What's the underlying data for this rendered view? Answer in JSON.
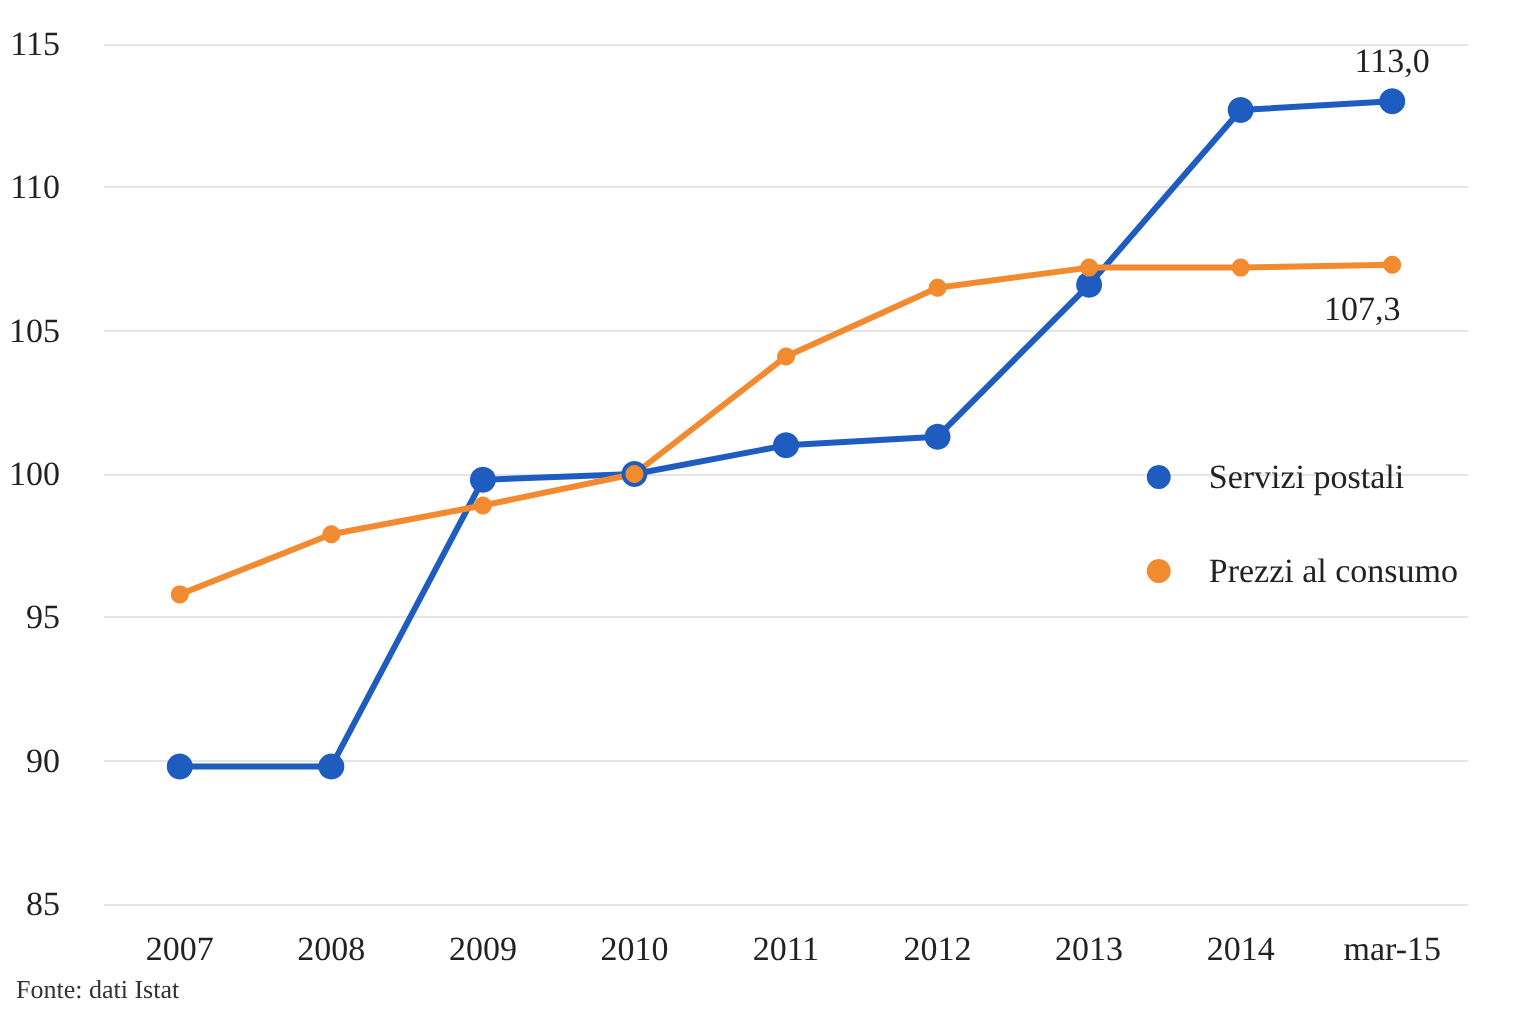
{
  "chart_data": {
    "type": "line",
    "categories": [
      "2007",
      "2008",
      "2009",
      "2010",
      "2011",
      "2012",
      "2013",
      "2014",
      "mar-15"
    ],
    "series": [
      {
        "name": "Servizi postali",
        "color": "#1f5cc0",
        "values": [
          89.8,
          89.8,
          99.8,
          100.0,
          101.0,
          101.3,
          106.6,
          112.7,
          113.0
        ],
        "value_labels": [
          null,
          null,
          null,
          null,
          null,
          null,
          null,
          null,
          "113,0"
        ]
      },
      {
        "name": "Prezzi al consumo",
        "color": "#f28a30",
        "values": [
          95.8,
          97.9,
          98.9,
          100.0,
          104.1,
          106.5,
          107.2,
          107.2,
          107.3
        ],
        "value_labels": [
          null,
          null,
          null,
          null,
          null,
          null,
          null,
          null,
          "107,3"
        ]
      }
    ],
    "ylim": [
      85,
      115
    ],
    "yticks": [
      85,
      90,
      95,
      100,
      105,
      110,
      115
    ],
    "grid": "y",
    "legend": "right",
    "marker": "circle",
    "line_style": "solid",
    "annotations": [
      "Fonte: dati Istat"
    ]
  }
}
